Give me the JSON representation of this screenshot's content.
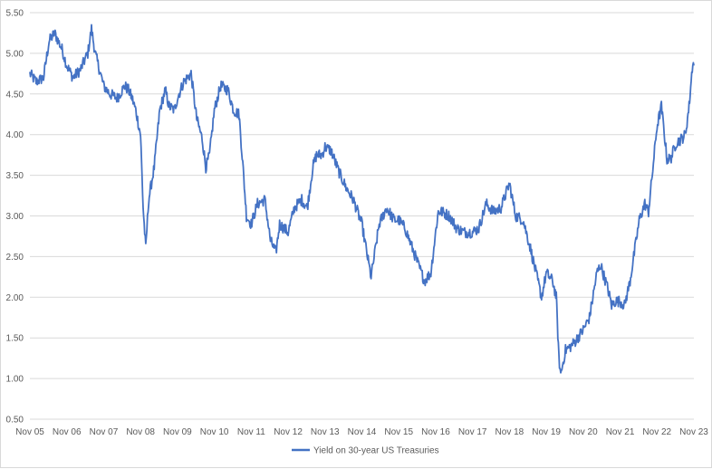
{
  "chart_data": {
    "type": "line",
    "title": "",
    "xlabel": "",
    "ylabel": "",
    "ylim": [
      0.5,
      5.5
    ],
    "y_ticks": [
      "0.50",
      "1.00",
      "1.50",
      "2.00",
      "2.50",
      "3.00",
      "3.50",
      "4.00",
      "4.50",
      "5.00",
      "5.50"
    ],
    "x_ticks": [
      "Nov 05",
      "Nov 06",
      "Nov 07",
      "Nov 08",
      "Nov 09",
      "Nov 10",
      "Nov 11",
      "Nov 12",
      "Nov 13",
      "Nov 14",
      "Nov 15",
      "Nov 16",
      "Nov 17",
      "Nov 18",
      "Nov 19",
      "Nov 20",
      "Nov 21",
      "Nov 22",
      "Nov 23"
    ],
    "grid": "horizontal",
    "legend": "bottom",
    "series": [
      {
        "name": "Yield on 30-year US Treasuries",
        "color": "#4472c4",
        "x": [
          2005.83,
          2006.0,
          2006.2,
          2006.35,
          2006.5,
          2006.7,
          2006.83,
          2007.0,
          2007.2,
          2007.4,
          2007.5,
          2007.6,
          2007.83,
          2008.0,
          2008.2,
          2008.4,
          2008.5,
          2008.6,
          2008.7,
          2008.83,
          2008.9,
          2008.97,
          2009.05,
          2009.2,
          2009.35,
          2009.5,
          2009.6,
          2009.75,
          2009.83,
          2010.0,
          2010.2,
          2010.35,
          2010.5,
          2010.6,
          2010.7,
          2010.83,
          2011.0,
          2011.2,
          2011.35,
          2011.5,
          2011.6,
          2011.7,
          2011.83,
          2012.0,
          2012.2,
          2012.35,
          2012.5,
          2012.6,
          2012.83,
          2013.0,
          2013.2,
          2013.35,
          2013.5,
          2013.6,
          2013.75,
          2013.83,
          2014.0,
          2014.2,
          2014.4,
          2014.6,
          2014.75,
          2014.83,
          2015.0,
          2015.08,
          2015.3,
          2015.5,
          2015.7,
          2015.83,
          2016.0,
          2016.2,
          2016.4,
          2016.53,
          2016.7,
          2016.83,
          2016.9,
          2017.0,
          2017.2,
          2017.4,
          2017.6,
          2017.83,
          2018.0,
          2018.2,
          2018.4,
          2018.6,
          2018.83,
          2019.0,
          2019.2,
          2019.4,
          2019.6,
          2019.7,
          2019.83,
          2020.0,
          2020.1,
          2020.17,
          2020.22,
          2020.35,
          2020.5,
          2020.6,
          2020.83,
          2021.0,
          2021.2,
          2021.3,
          2021.5,
          2021.6,
          2021.7,
          2021.83,
          2021.95,
          2022.1,
          2022.2,
          2022.35,
          2022.5,
          2022.6,
          2022.7,
          2022.83,
          2022.95,
          2023.1,
          2023.2,
          2023.35,
          2023.5,
          2023.6,
          2023.7,
          2023.8,
          2023.83
        ],
        "values": [
          4.75,
          4.65,
          4.7,
          5.15,
          5.25,
          5.05,
          4.85,
          4.7,
          4.8,
          5.0,
          5.3,
          5.0,
          4.6,
          4.5,
          4.45,
          4.6,
          4.55,
          4.45,
          4.3,
          4.0,
          3.1,
          2.6,
          3.2,
          3.6,
          4.3,
          4.55,
          4.35,
          4.3,
          4.45,
          4.65,
          4.75,
          4.2,
          3.95,
          3.6,
          3.75,
          4.3,
          4.6,
          4.55,
          4.3,
          4.25,
          3.65,
          3.0,
          2.9,
          3.15,
          3.2,
          2.7,
          2.55,
          2.9,
          2.8,
          3.1,
          3.2,
          3.1,
          3.6,
          3.75,
          3.75,
          3.85,
          3.8,
          3.55,
          3.35,
          3.2,
          3.0,
          2.9,
          2.45,
          2.25,
          2.9,
          3.1,
          2.95,
          2.95,
          2.85,
          2.6,
          2.35,
          2.2,
          2.3,
          2.8,
          3.05,
          3.05,
          3.0,
          2.85,
          2.8,
          2.8,
          2.85,
          3.15,
          3.05,
          3.1,
          3.4,
          3.0,
          2.95,
          2.6,
          2.2,
          2.0,
          2.3,
          2.2,
          2.0,
          1.25,
          1.05,
          1.35,
          1.4,
          1.45,
          1.6,
          1.75,
          2.3,
          2.4,
          2.1,
          1.9,
          1.95,
          1.95,
          1.9,
          2.2,
          2.5,
          2.95,
          3.15,
          3.05,
          3.5,
          4.1,
          4.35,
          3.7,
          3.7,
          3.9,
          3.95,
          4.0,
          4.35,
          4.9,
          4.85
        ]
      }
    ]
  }
}
